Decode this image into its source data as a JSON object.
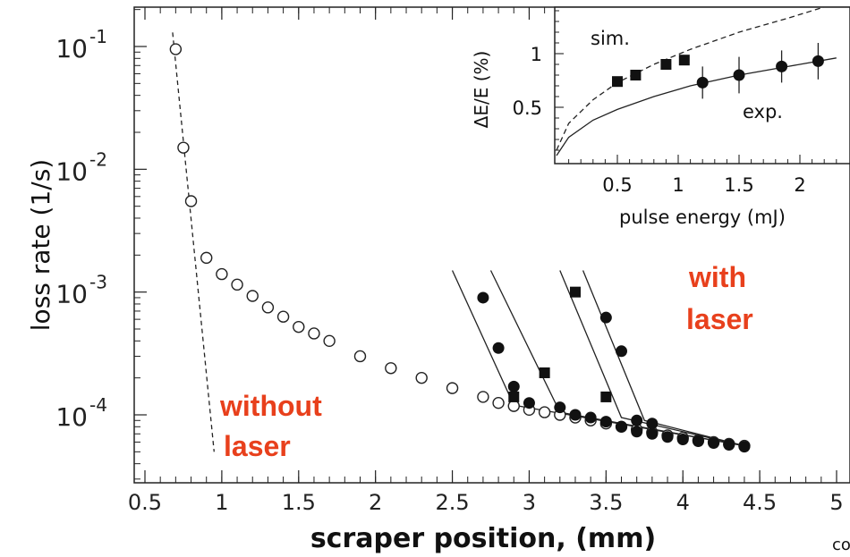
{
  "chart_data": [
    {
      "type": "scatter",
      "title": "",
      "xlabel": "scraper position, (mm)",
      "ylabel": "loss rate (1/s)",
      "xlim": [
        0.5,
        5.1
      ],
      "ylim": [
        3e-05,
        0.15
      ],
      "yscale": "log",
      "x_ticks": [
        "0.5",
        "1",
        "1.5",
        "2",
        "2.5",
        "3",
        "3.5",
        "4",
        "4.5",
        "5"
      ],
      "y_ticks": [
        {
          "base": "10",
          "exp": "-1",
          "value": 0.1
        },
        {
          "base": "10",
          "exp": "-2",
          "value": 0.01
        },
        {
          "base": "10",
          "exp": "-3",
          "value": 0.001
        },
        {
          "base": "10",
          "exp": "-4",
          "value": 0.0001
        }
      ],
      "annotations": {
        "without_laser": [
          "without",
          "laser"
        ],
        "with_laser": [
          "with",
          "laser"
        ],
        "color": "#e8401c"
      },
      "series": [
        {
          "marker": "open-circle",
          "x": [
            0.7,
            0.75,
            0.8,
            0.9,
            1.0,
            1.1,
            1.2,
            1.3,
            1.4,
            1.5,
            1.6,
            1.7,
            1.9,
            2.1,
            2.3,
            2.5,
            2.7,
            2.8,
            2.9,
            3.0,
            3.1,
            3.2,
            3.3,
            3.4,
            3.5,
            3.6,
            3.7,
            3.8,
            3.9,
            4.0,
            4.1,
            4.2,
            4.3,
            4.4
          ],
          "y": [
            0.095,
            0.015,
            0.0055,
            0.0019,
            0.0014,
            0.00115,
            0.00093,
            0.00075,
            0.00063,
            0.00052,
            0.00046,
            0.0004,
            0.0003,
            0.00024,
            0.0002,
            0.000165,
            0.00014,
            0.000125,
            0.000118,
            0.00011,
            0.000105,
            0.0001,
            9.5e-05,
            9e-05,
            8.5e-05,
            8e-05,
            7.6e-05,
            7.2e-05,
            6.8e-05,
            6.5e-05,
            6.2e-05,
            6e-05,
            5.8e-05,
            5.6e-05
          ]
        },
        {
          "marker": "filled-circle",
          "x": [
            2.7,
            2.8,
            2.9,
            3.0,
            3.2,
            3.3,
            3.4,
            3.5,
            3.6,
            3.7,
            3.8,
            3.9,
            4.0,
            4.1,
            4.2,
            4.3,
            4.4
          ],
          "y": [
            0.0009,
            0.00035,
            0.00017,
            0.000125,
            0.000115,
            0.0001,
            9.5e-05,
            8.8e-05,
            8e-05,
            7.3e-05,
            7e-05,
            6.6e-05,
            6.3e-05,
            6.1e-05,
            5.9e-05,
            5.7e-05,
            5.5e-05
          ]
        },
        {
          "marker": "filled-square",
          "x": [
            2.9,
            3.1,
            3.3,
            3.5
          ],
          "y": [
            0.00014,
            0.00022,
            0.001,
            0.00014
          ]
        },
        {
          "marker": "filled-circle",
          "x": [
            3.5,
            3.6,
            3.7,
            3.8
          ],
          "y": [
            0.00062,
            0.00033,
            9e-05,
            8.5e-05
          ]
        }
      ],
      "fit_lines": [
        {
          "style": "dashed",
          "x": [
            0.68,
            0.95
          ],
          "y": [
            0.13,
            5e-05
          ]
        },
        {
          "style": "solid",
          "x": [
            2.5,
            2.9,
            4.4
          ],
          "y": [
            0.0015,
            0.00012,
            5.6e-05
          ]
        },
        {
          "style": "solid",
          "x": [
            2.75,
            3.2,
            4.4
          ],
          "y": [
            0.0015,
            0.000105,
            5.6e-05
          ]
        },
        {
          "style": "solid",
          "x": [
            3.2,
            3.6,
            4.4
          ],
          "y": [
            0.0015,
            9.5e-05,
            5.6e-05
          ]
        },
        {
          "style": "solid",
          "x": [
            3.35,
            3.75,
            4.4
          ],
          "y": [
            0.0015,
            9e-05,
            5.6e-05
          ]
        }
      ]
    },
    {
      "type": "scatter",
      "title": "",
      "xlabel": "pulse energy (mJ)",
      "ylabel": "ΔE/E (%)",
      "xlim": [
        0,
        2.35
      ],
      "ylim": [
        0,
        1.35
      ],
      "x_ticks": [
        "0.5",
        "1",
        "1.5",
        "2"
      ],
      "y_ticks": [
        "0.5",
        "1"
      ],
      "annotations": {
        "sim": "sim.",
        "exp": "exp."
      },
      "series": [
        {
          "label": "sim.",
          "marker": "filled-square",
          "x": [
            0.5,
            0.65,
            0.9,
            1.05
          ],
          "y": [
            0.74,
            0.8,
            0.9,
            0.94
          ]
        },
        {
          "label": "exp.",
          "marker": "filled-circle-errorbar",
          "x": [
            1.2,
            1.5,
            1.85,
            2.15
          ],
          "y": [
            0.73,
            0.8,
            0.88,
            0.93
          ],
          "err": [
            0.15,
            0.17,
            0.15,
            0.17
          ]
        }
      ],
      "fit_lines": [
        {
          "label": "sim.",
          "style": "dashed",
          "x": [
            0,
            0.1,
            0.3,
            0.5,
            0.8,
            1.1,
            1.5,
            1.9,
            2.3
          ],
          "y": [
            0.1,
            0.35,
            0.57,
            0.73,
            0.9,
            1.04,
            1.2,
            1.33,
            1.47
          ]
        },
        {
          "label": "exp.",
          "style": "solid",
          "x": [
            0,
            0.1,
            0.3,
            0.5,
            0.8,
            1.1,
            1.5,
            1.9,
            2.3
          ],
          "y": [
            0.05,
            0.22,
            0.38,
            0.48,
            0.6,
            0.7,
            0.8,
            0.88,
            0.96
          ]
        }
      ]
    }
  ],
  "corner_text": "co"
}
